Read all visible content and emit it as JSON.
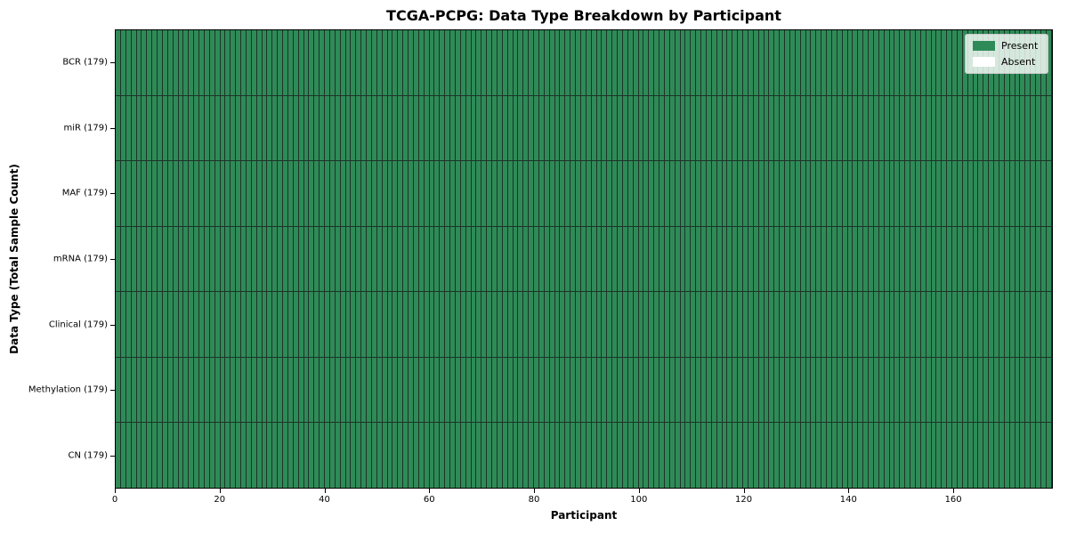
{
  "chart_data": {
    "type": "heatmap",
    "title": "TCGA-PCPG: Data Type Breakdown by Participant",
    "xlabel": "Participant",
    "ylabel": "Data Type (Total Sample Count)",
    "x_ticks": [
      0,
      20,
      40,
      60,
      80,
      100,
      120,
      140,
      160
    ],
    "xlim": [
      0,
      179
    ],
    "n_participants": 179,
    "rows": [
      {
        "label": "BCR (179)",
        "data_type": "BCR",
        "total_samples": 179,
        "present": 179,
        "absent": 0
      },
      {
        "label": "miR (179)",
        "data_type": "miR",
        "total_samples": 179,
        "present": 179,
        "absent": 0
      },
      {
        "label": "MAF (179)",
        "data_type": "MAF",
        "total_samples": 179,
        "present": 179,
        "absent": 0
      },
      {
        "label": "mRNA (179)",
        "data_type": "mRNA",
        "total_samples": 179,
        "present": 179,
        "absent": 0
      },
      {
        "label": "Clinical (179)",
        "data_type": "Clinical",
        "total_samples": 179,
        "present": 179,
        "absent": 0
      },
      {
        "label": "Methylation (179)",
        "data_type": "Methylation",
        "total_samples": 179,
        "present": 179,
        "absent": 0
      },
      {
        "label": "CN (179)",
        "data_type": "CN",
        "total_samples": 179,
        "present": 179,
        "absent": 0
      }
    ],
    "legend": {
      "position": "upper right",
      "entries": [
        {
          "label": "Present",
          "color": "#2e8b57"
        },
        {
          "label": "Absent",
          "color": "#ffffff"
        }
      ]
    },
    "colors": {
      "present": "#2e8b57",
      "absent": "#ffffff",
      "grid_line": "#1e3329",
      "spine": "#000000"
    }
  }
}
